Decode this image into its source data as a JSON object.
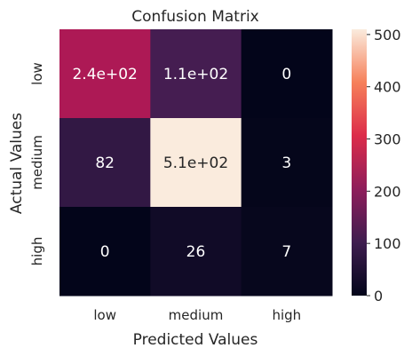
{
  "chart_data": {
    "type": "heatmap",
    "title": "Confusion Matrix",
    "xlabel": "Predicted Values",
    "ylabel": "Actual Values",
    "x_categories": [
      "low",
      "medium",
      "high"
    ],
    "y_categories": [
      "low",
      "medium",
      "high"
    ],
    "values": [
      [
        240,
        110,
        0
      ],
      [
        82,
        510,
        3
      ],
      [
        0,
        26,
        7
      ]
    ],
    "annotations": [
      [
        "2.4e+02",
        "1.1e+02",
        "0"
      ],
      [
        "82",
        "5.1e+02",
        "3"
      ],
      [
        "0",
        "26",
        "7"
      ]
    ],
    "colorbar": {
      "min": 0,
      "max": 510,
      "ticks": [
        "0",
        "100",
        "200",
        "300",
        "400",
        "500"
      ],
      "colormap": "rocket"
    },
    "grid": false,
    "legend": "colorbar-right"
  }
}
